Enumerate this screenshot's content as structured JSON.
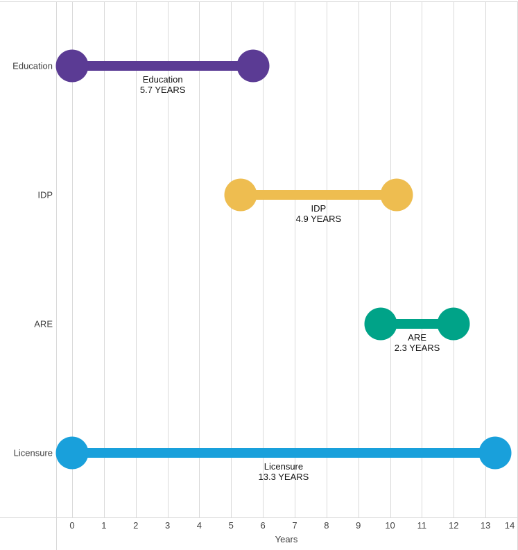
{
  "chart_data": {
    "type": "dumbbell",
    "orientation": "horizontal",
    "title": "",
    "xlabel": "Years",
    "xlim": [
      0,
      14
    ],
    "x_ticks": [
      "0",
      "1",
      "2",
      "3",
      "4",
      "5",
      "6",
      "7",
      "8",
      "9",
      "10",
      "11",
      "12",
      "13",
      "14"
    ],
    "grid": "vertical",
    "legend": "none",
    "categories": [
      "Education",
      "IDP",
      "ARE",
      "Licensure"
    ],
    "series": [
      {
        "name": "Education",
        "start": 0,
        "end": 5.7,
        "duration_years": 5.7,
        "duration_label": "5.7 YEARS",
        "color": "#5b3b94"
      },
      {
        "name": "IDP",
        "start": 5.3,
        "end": 10.2,
        "duration_years": 4.9,
        "duration_label": "4.9 YEARS",
        "color": "#eebd50"
      },
      {
        "name": "ARE",
        "start": 9.7,
        "end": 12.0,
        "duration_years": 2.3,
        "duration_label": "2.3 YEARS",
        "color": "#00a388"
      },
      {
        "name": "Licensure",
        "start": 0,
        "end": 13.3,
        "duration_years": 13.3,
        "duration_label": "13.3 YEARS",
        "color": "#19a0db"
      }
    ],
    "colors": {
      "gridline": "#d9d9d9",
      "axis_text": "#404040",
      "data_label_text": "#111111",
      "background": "#ffffff"
    }
  }
}
